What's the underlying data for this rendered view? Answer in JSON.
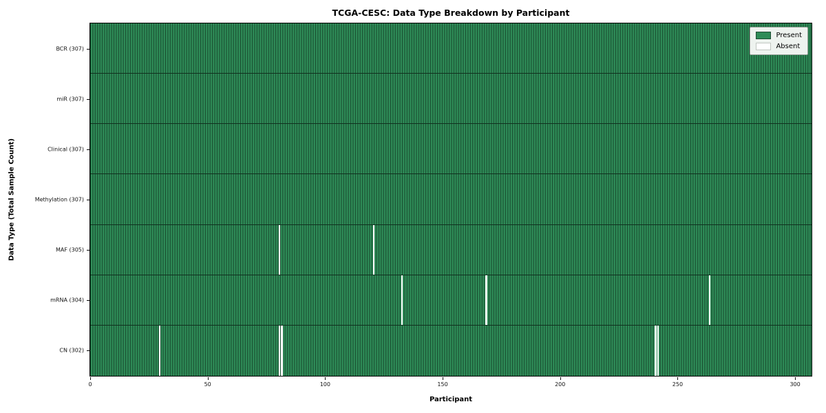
{
  "chart_data": {
    "type": "heatmap",
    "title": "TCGA-CESC: Data Type Breakdown by Participant",
    "xlabel": "Participant",
    "ylabel": "Data Type (Total Sample Count)",
    "x_ticks": [
      0,
      50,
      100,
      150,
      200,
      250,
      300
    ],
    "xlim": [
      0,
      307
    ],
    "n_participants": 307,
    "grid": false,
    "legend": {
      "position": "upper right",
      "items": [
        {
          "label": "Present",
          "color": "#2e8b57",
          "edge": "#1e4d33"
        },
        {
          "label": "Absent",
          "color": "#ffffff",
          "edge": "#c0c6c0"
        }
      ]
    },
    "rows": [
      {
        "label": "BCR (307)",
        "data_type": "BCR",
        "total": 307,
        "absent_participants": []
      },
      {
        "label": "miR (307)",
        "data_type": "miR",
        "total": 307,
        "absent_participants": []
      },
      {
        "label": "Clinical (307)",
        "data_type": "Clinical",
        "total": 307,
        "absent_participants": []
      },
      {
        "label": "Methylation (307)",
        "data_type": "Methylation",
        "total": 307,
        "absent_participants": []
      },
      {
        "label": "MAF (305)",
        "data_type": "MAF",
        "total": 305,
        "absent_participants": [
          80,
          120
        ]
      },
      {
        "label": "mRNA (304)",
        "data_type": "mRNA",
        "total": 304,
        "absent_participants": [
          132,
          168,
          263
        ]
      },
      {
        "label": "CN (302)",
        "data_type": "CN",
        "total": 302,
        "absent_participants": [
          29,
          80,
          81,
          240,
          241
        ]
      }
    ],
    "colors": {
      "present": "#2e8b57",
      "absent": "#ffffff",
      "bar_edge": "rgba(0,0,0,0.48)",
      "plot_border": "#000000",
      "legend_bg": "#eef3ef"
    }
  }
}
